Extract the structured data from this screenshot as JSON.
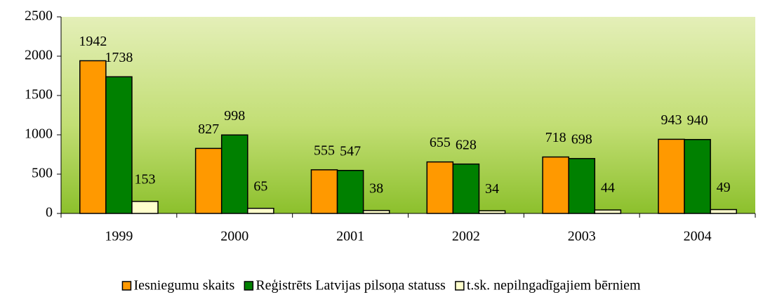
{
  "chart_data": {
    "type": "bar",
    "categories": [
      "1999",
      "2000",
      "2001",
      "2002",
      "2003",
      "2004"
    ],
    "series": [
      {
        "name": "Iesniegumu skaits",
        "color": "#FF9900",
        "values": [
          1942,
          827,
          555,
          655,
          718,
          943
        ]
      },
      {
        "name": "Reģistrēts Latvijas pilsoņa statuss",
        "color": "#008000",
        "values": [
          1738,
          998,
          547,
          628,
          698,
          940
        ]
      },
      {
        "name": "t.sk. nepilngadīgajiem bērniem",
        "color": "#FFFFCC",
        "values": [
          153,
          65,
          38,
          34,
          44,
          49
        ]
      }
    ],
    "ylim": [
      0,
      2500
    ],
    "yticks": [
      0,
      500,
      1000,
      1500,
      2000,
      2500
    ],
    "legend": "bottom"
  }
}
